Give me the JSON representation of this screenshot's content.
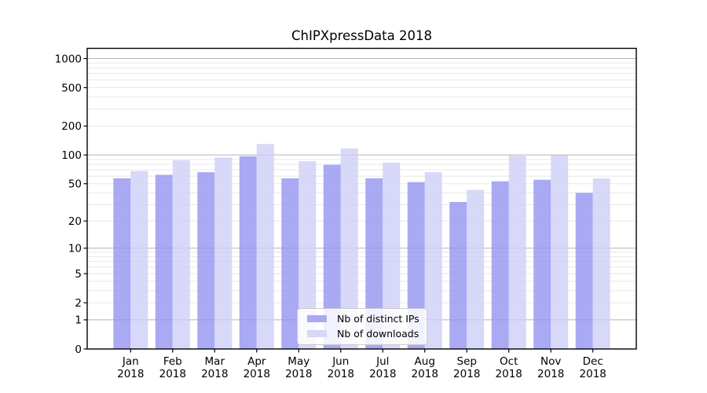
{
  "figure": {
    "background": "#ffffff"
  },
  "chart_data": {
    "type": "bar",
    "title": "ChIPXpressData 2018",
    "categories": [
      "Jan 2018",
      "Feb 2018",
      "Mar 2018",
      "Apr 2018",
      "May 2018",
      "Jun 2018",
      "Jul 2018",
      "Aug 2018",
      "Sep 2018",
      "Oct 2018",
      "Nov 2018",
      "Dec 2018"
    ],
    "series": [
      {
        "name": "Nb of distinct IPs",
        "color": "#a9a9f4",
        "values": [
          57,
          62,
          66,
          97,
          57,
          79,
          57,
          52,
          32,
          53,
          55,
          40
        ]
      },
      {
        "name": "Nb of downloads",
        "color": "#d8d8f8",
        "values": [
          68,
          88,
          94,
          130,
          86,
          117,
          83,
          66,
          43,
          98,
          99,
          57
        ]
      }
    ],
    "xlabel": "",
    "ylabel": "",
    "y_axis": {
      "scale": "log1p",
      "ticks": [
        0,
        1,
        2,
        5,
        10,
        20,
        50,
        100,
        200,
        500,
        1000
      ],
      "major_grid_values": [
        1,
        10,
        100,
        1000
      ],
      "ylim": [
        0,
        1270
      ]
    },
    "grid": true,
    "legend_position": "bottom-center",
    "colors": {
      "frame": "#000000",
      "tick_text": "#000000",
      "major_grid": "#b4b4b4",
      "minor_grid": "#e8e8e8",
      "legend_border": "#cccccc"
    }
  }
}
